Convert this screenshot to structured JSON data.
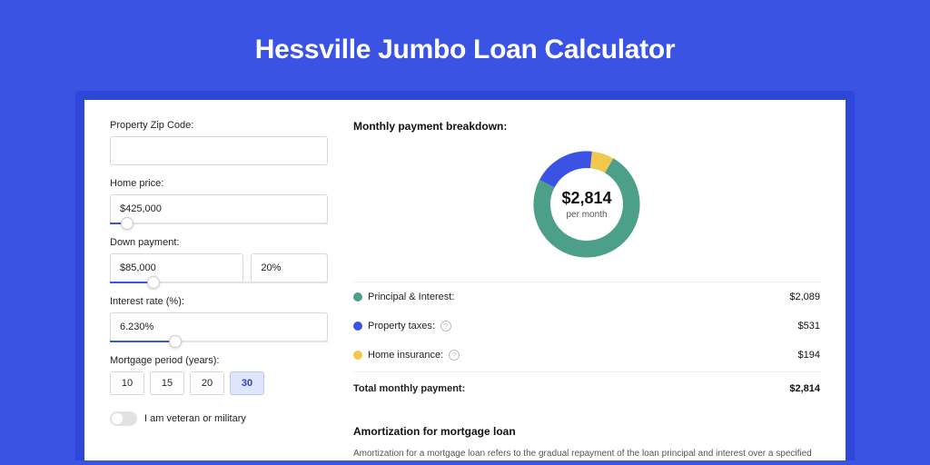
{
  "page": {
    "title": "Hessville Jumbo Loan Calculator"
  },
  "colors": {
    "outer_bg": "#3b53e4",
    "card_shadow_bg": "#2d48d8",
    "card_bg": "#ffffff",
    "text": "#222222",
    "border": "#d8d8d8",
    "slider_fill": "#3b53e4",
    "active_pill_bg": "#dfe5fd",
    "active_pill_border": "#b9c6fb"
  },
  "form": {
    "zip_label": "Property Zip Code:",
    "zip_value": "",
    "home_price_label": "Home price:",
    "home_price_value": "$425,000",
    "home_price_slider_pct": 8,
    "down_payment_label": "Down payment:",
    "down_payment_value": "$85,000",
    "down_payment_pct_value": "20%",
    "down_payment_slider_pct": 20,
    "interest_label": "Interest rate (%):",
    "interest_value": "6.230%",
    "interest_slider_pct": 30,
    "period_label": "Mortgage period (years):",
    "period_options": [
      "10",
      "15",
      "20",
      "30"
    ],
    "period_active_index": 3,
    "veteran_label": "I am veteran or military",
    "veteran_on": false
  },
  "breakdown": {
    "title": "Monthly payment breakdown:",
    "donut": {
      "center_amount": "$2,814",
      "center_sub": "per month",
      "slices": [
        {
          "label": "Principal & Interest",
          "pct": 74.2,
          "color": "#4ca08a"
        },
        {
          "label": "Property taxes",
          "pct": 18.9,
          "color": "#3b53e4"
        },
        {
          "label": "Home insurance",
          "pct": 6.9,
          "color": "#f1c84b"
        }
      ]
    },
    "rows": [
      {
        "key": "pi",
        "label": "Principal & Interest:",
        "value": "$2,089",
        "color": "#4ca08a",
        "info": false
      },
      {
        "key": "tax",
        "label": "Property taxes:",
        "value": "$531",
        "color": "#3b53e4",
        "info": true
      },
      {
        "key": "ins",
        "label": "Home insurance:",
        "value": "$194",
        "color": "#f1c84b",
        "info": true
      }
    ],
    "total_label": "Total monthly payment:",
    "total_value": "$2,814"
  },
  "amortization": {
    "title": "Amortization for mortgage loan",
    "body": "Amortization for a mortgage loan refers to the gradual repayment of the loan principal and interest over a specified"
  }
}
